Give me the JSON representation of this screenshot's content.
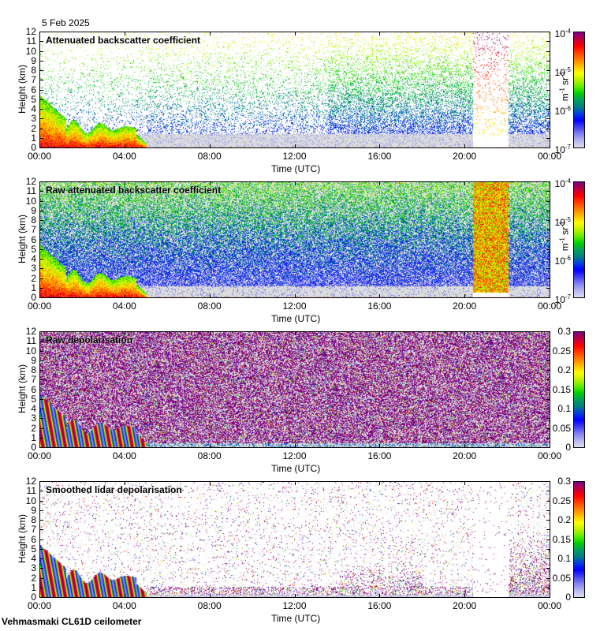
{
  "header": {
    "date": "5 Feb 2025"
  },
  "footer": {
    "station": "Vehmasmaki CL61D ceilometer"
  },
  "chart_data": [
    {
      "type": "heatmap",
      "title": "Attenuated backscatter coefficient",
      "xlabel": "Time (UTC)",
      "ylabel": "Height (km)",
      "x_ticks": [
        "00:00",
        "04:00",
        "08:00",
        "12:00",
        "16:00",
        "20:00",
        "00:00"
      ],
      "y_ticks": [
        "0",
        "1",
        "2",
        "3",
        "4",
        "5",
        "6",
        "7",
        "8",
        "9",
        "10",
        "11",
        "12"
      ],
      "ylim": [
        0,
        12
      ],
      "colorbar": {
        "scale": "log",
        "range": [
          1e-07,
          0.0001
        ],
        "unit_base": "m",
        "unit_exp1": "-1",
        "unit_mid": " sr",
        "unit_exp2": "-1",
        "ticks": [
          {
            "base": "10",
            "exp": "-4"
          },
          {
            "base": "10",
            "exp": "-5"
          },
          {
            "base": "10",
            "exp": "-6"
          },
          {
            "base": "10",
            "exp": "-7"
          }
        ]
      },
      "pattern": "smoothed_backscatter"
    },
    {
      "type": "heatmap",
      "title": "Raw attenuated backscatter coefficient",
      "xlabel": "Time (UTC)",
      "ylabel": "Height (km)",
      "x_ticks": [
        "00:00",
        "04:00",
        "08:00",
        "12:00",
        "16:00",
        "20:00",
        "00:00"
      ],
      "y_ticks": [
        "0",
        "1",
        "2",
        "3",
        "4",
        "5",
        "6",
        "7",
        "8",
        "9",
        "10",
        "11",
        "12"
      ],
      "ylim": [
        0,
        12
      ],
      "colorbar": {
        "scale": "log",
        "range": [
          1e-07,
          0.0001
        ],
        "unit_base": "m",
        "unit_exp1": "-1",
        "unit_mid": " sr",
        "unit_exp2": "-1",
        "ticks": [
          {
            "base": "10",
            "exp": "-4"
          },
          {
            "base": "10",
            "exp": "-5"
          },
          {
            "base": "10",
            "exp": "-6"
          },
          {
            "base": "10",
            "exp": "-7"
          }
        ]
      },
      "pattern": "raw_backscatter"
    },
    {
      "type": "heatmap",
      "title": "Raw depolarisation",
      "xlabel": "Time (UTC)",
      "ylabel": "Height (km)",
      "x_ticks": [
        "00:00",
        "04:00",
        "08:00",
        "12:00",
        "16:00",
        "20:00",
        "00:00"
      ],
      "y_ticks": [
        "0",
        "1",
        "2",
        "3",
        "4",
        "5",
        "6",
        "7",
        "8",
        "9",
        "10",
        "11",
        "12"
      ],
      "ylim": [
        0,
        12
      ],
      "colorbar": {
        "scale": "linear",
        "range": [
          0,
          0.3
        ],
        "ticks": [
          "0.3",
          "0.25",
          "0.2",
          "0.15",
          "0.1",
          "0.05",
          "0"
        ]
      },
      "pattern": "raw_depol"
    },
    {
      "type": "heatmap",
      "title": "Smoothed lidar depolarisation",
      "xlabel": "Time (UTC)",
      "ylabel": "Height (km)",
      "x_ticks": [
        "00:00",
        "04:00",
        "08:00",
        "12:00",
        "16:00",
        "20:00",
        "00:00"
      ],
      "y_ticks": [
        "0",
        "1",
        "2",
        "3",
        "4",
        "5",
        "6",
        "7",
        "8",
        "9",
        "10",
        "11",
        "12"
      ],
      "ylim": [
        0,
        12
      ],
      "colorbar": {
        "scale": "linear",
        "range": [
          0,
          0.3
        ],
        "ticks": [
          "0.3",
          "0.25",
          "0.2",
          "0.15",
          "0.1",
          "0.05",
          "0"
        ]
      },
      "pattern": "smoothed_depol"
    }
  ],
  "colormap": [
    "#dcdcf0",
    "#b4b4f0",
    "#8080f0",
    "#4040f0",
    "#0000ff",
    "#0040e0",
    "#008080",
    "#00a060",
    "#00d000",
    "#60f000",
    "#c0f000",
    "#ffff00",
    "#ffc000",
    "#ff8000",
    "#ff4000",
    "#ff0000",
    "#c00040",
    "#800080"
  ]
}
